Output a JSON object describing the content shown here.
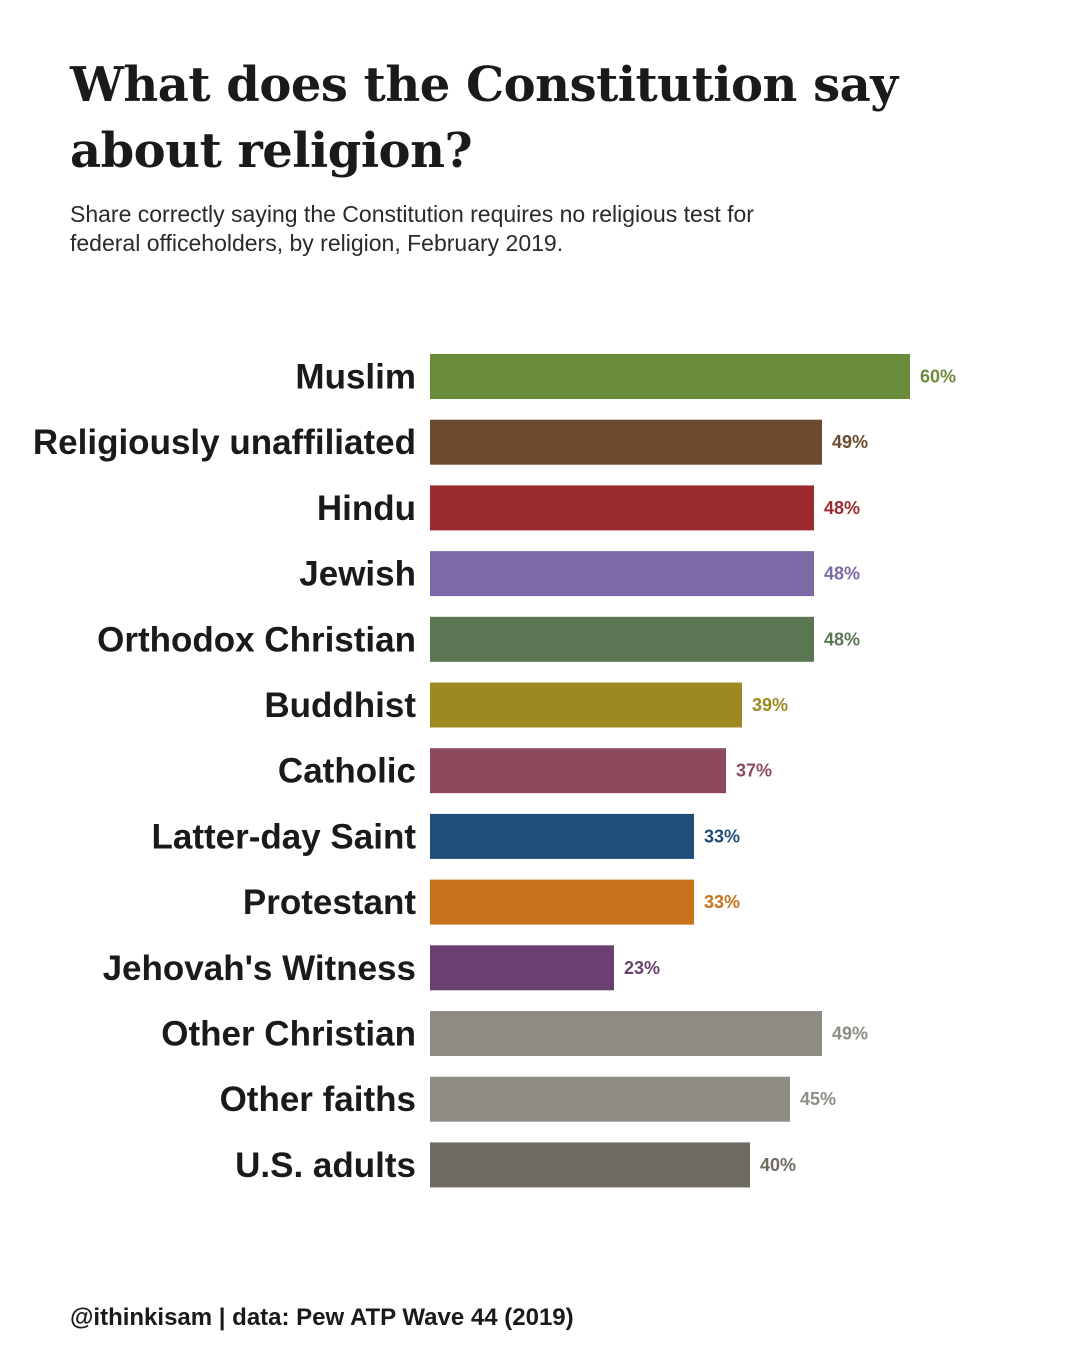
{
  "header": {
    "title": "What does the Constitution say about religion?",
    "subtitle": "Share correctly saying the Constitution requires no religious test for federal officeholders, by religion, February 2019."
  },
  "footer": {
    "caption": "@ithinkisam | data: Pew ATP Wave 44 (2019)"
  },
  "chart_data": {
    "type": "bar",
    "orientation": "horizontal",
    "title": "What does the Constitution say about religion?",
    "subtitle": "Share correctly saying the Constitution requires no religious test for federal officeholders, by religion, February 2019.",
    "xlabel": "",
    "ylabel": "",
    "xlim": [
      0,
      60
    ],
    "grid": false,
    "legend": "none",
    "categories": [
      "Muslim",
      "Religiously unaffiliated",
      "Hindu",
      "Jewish",
      "Orthodox Christian",
      "Buddhist",
      "Catholic",
      "Latter-day Saint",
      "Protestant",
      "Jehovah's Witness",
      "Other Christian",
      "Other faiths",
      "U.S. adults"
    ],
    "values": [
      60,
      49,
      48,
      48,
      48,
      39,
      37,
      33,
      33,
      23,
      49,
      45,
      40
    ],
    "value_labels": [
      "60%",
      "49%",
      "48%",
      "48%",
      "48%",
      "39%",
      "37%",
      "33%",
      "33%",
      "23%",
      "49%",
      "45%",
      "40%"
    ],
    "colors": [
      "#6a8c3a",
      "#6b4a2e",
      "#9c2b2e",
      "#7b6aa6",
      "#5a7653",
      "#9c8a20",
      "#8c4a5c",
      "#1f4e79",
      "#c8731c",
      "#6a4070",
      "#8f8b85",
      "#8f8b85",
      "#6e6a62"
    ],
    "label_colors": [
      "#6a8c3a",
      "#6b4a2e",
      "#9c2b2e",
      "#7b6aa6",
      "#5a7653",
      "#9c8a20",
      "#8c4a5c",
      "#1f4e79",
      "#c8731c",
      "#6a4070",
      "#8f8b85",
      "#8f8b85",
      "#6e6a62"
    ]
  }
}
